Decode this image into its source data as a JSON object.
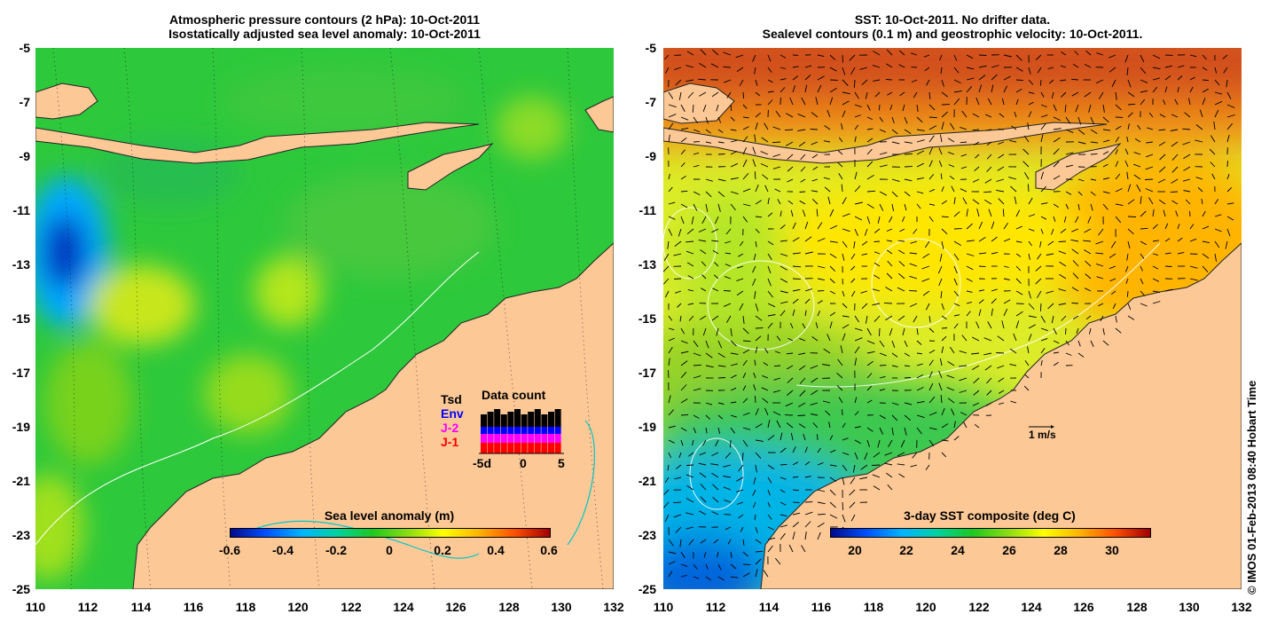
{
  "left": {
    "title_line1": "Atmospheric pressure contours (2 hPa): 10-Oct-2011",
    "title_line2": "Isostatically adjusted sea level anomaly: 10-Oct-2011",
    "colorbar_title": "Sea level anomaly (m)",
    "colorbar_ticks": [
      "-0.6",
      "-0.4",
      "-0.2",
      "0",
      "0.2",
      "0.4",
      "0.6"
    ],
    "colorbar_range": [
      -0.6,
      0.6
    ],
    "colorbar_colors": [
      "#000a8c",
      "#0050ff",
      "#00b4ff",
      "#00d2a0",
      "#1ec81e",
      "#8cdc14",
      "#ffff00",
      "#ffb400",
      "#ff5000",
      "#a00000"
    ],
    "legend": {
      "title": "Data count",
      "items": [
        {
          "label": "Tsd",
          "color": "#000000"
        },
        {
          "label": "Env",
          "color": "#0000ff"
        },
        {
          "label": "J-2",
          "color": "#ff00ff"
        },
        {
          "label": "J-1",
          "color": "#ff0000"
        }
      ],
      "axis_labels": [
        "-5d",
        "0",
        "5"
      ]
    }
  },
  "right": {
    "title_line1": "SST: 10-Oct-2011. No drifter data.",
    "title_line2": "Sealevel contours (0.1 m) and geostrophic velocity: 10-Oct-2011.",
    "colorbar_title": "3-day SST composite (deg C)",
    "colorbar_ticks": [
      "20",
      "22",
      "24",
      "26",
      "28",
      "30"
    ],
    "colorbar_range": [
      19,
      31.5
    ],
    "colorbar_colors": [
      "#000a8c",
      "#0050ff",
      "#00b4ff",
      "#00d2a0",
      "#1ec81e",
      "#8cdc14",
      "#ffff00",
      "#ffb400",
      "#ff5000",
      "#a00000"
    ],
    "velocity_scale": "1 m/s"
  },
  "axes": {
    "lon_ticks": [
      "110",
      "112",
      "114",
      "116",
      "118",
      "120",
      "122",
      "124",
      "126",
      "128",
      "130",
      "132"
    ],
    "lat_ticks": [
      "-5",
      "-7",
      "-9",
      "-11",
      "-13",
      "-15",
      "-17",
      "-19",
      "-21",
      "-23",
      "-25"
    ],
    "lon_range": [
      110,
      132
    ],
    "lat_range": [
      -25,
      -5
    ]
  },
  "credit": "© IMOS 01-Feb-2013 08:40 Hobart Time",
  "colors": {
    "land": "#fcc896",
    "ocean_left": "#2dc83c",
    "ocean_right_warm": "#ffd700"
  }
}
